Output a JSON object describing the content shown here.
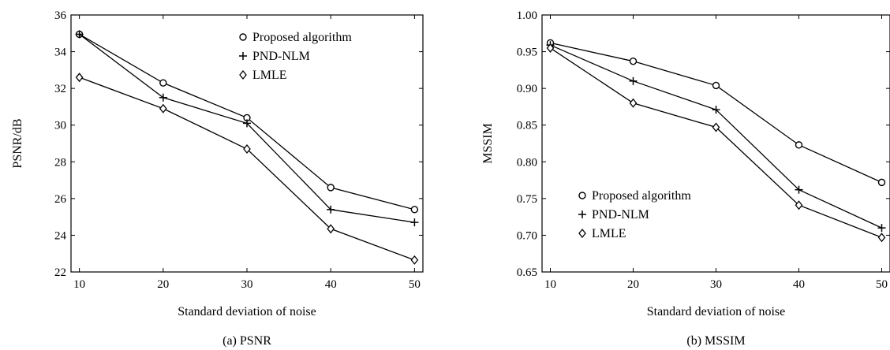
{
  "chart_data": [
    {
      "type": "line",
      "caption": "(a) PSNR",
      "xlabel": "Standard deviation of noise",
      "ylabel": "PSNR/dB",
      "x": [
        10,
        20,
        30,
        40,
        50
      ],
      "xlim": [
        9,
        51
      ],
      "ylim": [
        22,
        36
      ],
      "xticks": [
        10,
        20,
        30,
        40,
        50
      ],
      "yticks": [
        22,
        24,
        26,
        28,
        30,
        32,
        34,
        36
      ],
      "ytick_labels": [
        "22",
        "24",
        "26",
        "28",
        "30",
        "32",
        "34",
        "36"
      ],
      "legend_position": "top-right",
      "grid": false,
      "series": [
        {
          "name": "Proposed algorithm",
          "marker": "circle",
          "values": [
            34.95,
            32.3,
            30.4,
            26.6,
            25.4
          ]
        },
        {
          "name": "PND-NLM",
          "marker": "plus",
          "values": [
            34.95,
            31.5,
            30.1,
            25.4,
            24.7
          ]
        },
        {
          "name": "LMLE",
          "marker": "diamond",
          "values": [
            32.6,
            30.9,
            28.7,
            24.35,
            22.65
          ]
        }
      ]
    },
    {
      "type": "line",
      "caption": "(b) MSSIM",
      "xlabel": "Standard deviation of noise",
      "ylabel": "MSSIM",
      "x": [
        10,
        20,
        30,
        40,
        50
      ],
      "xlim": [
        9,
        51
      ],
      "ylim": [
        0.65,
        1.0
      ],
      "xticks": [
        10,
        20,
        30,
        40,
        50
      ],
      "yticks": [
        0.65,
        0.7,
        0.75,
        0.8,
        0.85,
        0.9,
        0.95,
        1.0
      ],
      "ytick_labels": [
        "0.65",
        "0.70",
        "0.75",
        "0.80",
        "0.85",
        "0.90",
        "0.95",
        "1.00"
      ],
      "legend_position": "bottom-left",
      "grid": false,
      "series": [
        {
          "name": "Proposed algorithm",
          "marker": "circle",
          "values": [
            0.962,
            0.937,
            0.904,
            0.823,
            0.772
          ]
        },
        {
          "name": "PND-NLM",
          "marker": "plus",
          "values": [
            0.959,
            0.91,
            0.871,
            0.762,
            0.71
          ]
        },
        {
          "name": "LMLE",
          "marker": "diamond",
          "values": [
            0.955,
            0.88,
            0.847,
            0.741,
            0.697
          ]
        }
      ]
    }
  ]
}
